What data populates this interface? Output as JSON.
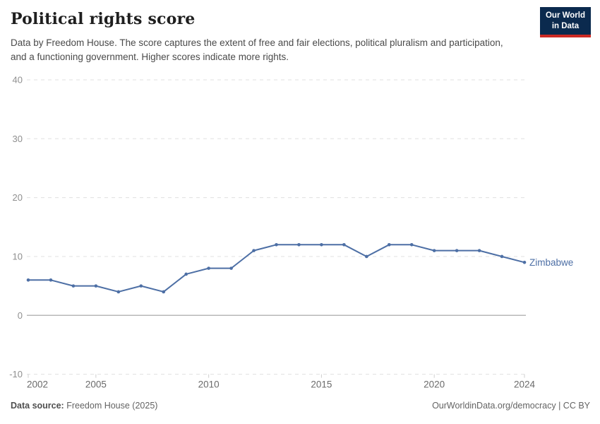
{
  "header": {
    "title": "Political rights score",
    "subtitle": "Data by Freedom House. The score captures the extent of free and fair elections, political pluralism and participation, and a functioning government. Higher scores indicate more rights.",
    "logo": {
      "line1": "Our World",
      "line2": "in Data",
      "bg_color": "#0b2a4e",
      "bar_color": "#cc2a24",
      "text_color": "#ffffff"
    }
  },
  "chart_data": {
    "type": "line",
    "title": "Political rights score",
    "xlabel": "",
    "ylabel": "",
    "ylim": [
      -10,
      40
    ],
    "grid": "horizontal-dashed, solid zero line",
    "legend_position": "entity label at end of line",
    "x": [
      2002,
      2003,
      2004,
      2005,
      2006,
      2007,
      2008,
      2009,
      2010,
      2011,
      2012,
      2013,
      2014,
      2015,
      2016,
      2017,
      2018,
      2019,
      2020,
      2021,
      2022,
      2023,
      2024
    ],
    "series": [
      {
        "name": "Zimbabwe",
        "color": "#4d6fa5",
        "values": [
          6,
          6,
          5,
          5,
          4,
          5,
          4,
          7,
          8,
          8,
          11,
          12,
          12,
          12,
          12,
          10,
          12,
          12,
          11,
          11,
          11,
          10,
          9
        ]
      }
    ],
    "x_ticks": [
      2002,
      2005,
      2010,
      2015,
      2020,
      2024
    ],
    "y_ticks": [
      40,
      30,
      20,
      10,
      0,
      -10
    ],
    "colors": {
      "gridline": "#e0e0e0",
      "zero_line": "#b8b8b8",
      "tick_mark": "#cfcfcf",
      "y_tick_label": "#8f8f8f",
      "x_tick_label": "#6b6b6b"
    }
  },
  "footer": {
    "source_label": "Data source:",
    "source_value": " Freedom House (2025)",
    "link": "OurWorldinData.org/democracy | CC BY"
  }
}
